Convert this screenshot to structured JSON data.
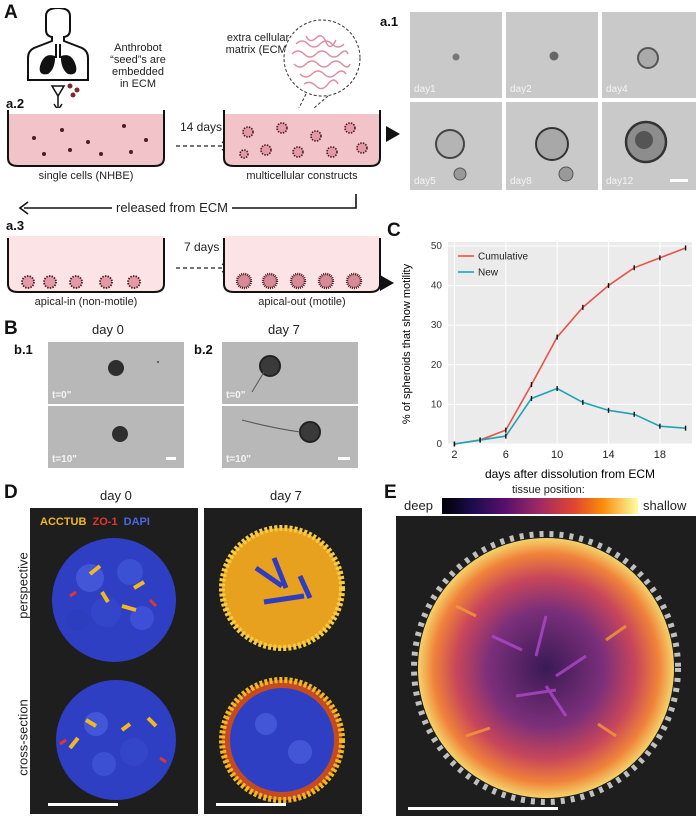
{
  "panels": {
    "A": "A",
    "a1": "a.1",
    "a2": "a.2",
    "a3": "a.3",
    "B": "B",
    "b1": "b.1",
    "b2": "b.2",
    "C": "C",
    "D": "D",
    "E": "E"
  },
  "panelA": {
    "anthrobot_text": [
      "Anthrobot",
      "“seed”s are",
      "embedded",
      "in ECM"
    ],
    "ecm_text": [
      "extra cellular",
      "matrix (ECM)"
    ],
    "arrow_14": "14 days",
    "single_cells": "single cells (NHBE)",
    "multicellular": "multicellular constructs",
    "released": "released from ECM",
    "arrow_7": "7 days",
    "apical_in": "apical-in (non-motile)",
    "apical_out": "apical-out (motile)",
    "timeline_days": [
      "day1",
      "day2",
      "day4",
      "day5",
      "day8",
      "day12"
    ]
  },
  "panelB": {
    "day0": "day 0",
    "day7": "day 7",
    "t0": "t=0\"",
    "t10": "t=10\""
  },
  "chart_data": {
    "type": "line",
    "xlabel": "days after dissolution from ECM",
    "ylabel": "% of spheroids that show motility",
    "xlim": [
      1.5,
      20.5
    ],
    "ylim": [
      0,
      51
    ],
    "xticks": [
      2,
      6,
      10,
      14,
      18
    ],
    "yticks": [
      0,
      10,
      20,
      30,
      40,
      50
    ],
    "grid": true,
    "legend_position": "top-left",
    "series": [
      {
        "name": "Cumulative",
        "color": "#e8524b",
        "x": [
          2,
          4,
          6,
          8,
          10,
          12,
          14,
          16,
          18,
          20
        ],
        "y": [
          0,
          1,
          3.5,
          15,
          27,
          34.5,
          40,
          44.5,
          47,
          49.5
        ]
      },
      {
        "name": "New",
        "color": "#1fa4b5",
        "x": [
          2,
          4,
          6,
          8,
          10,
          12,
          14,
          16,
          18,
          20
        ],
        "y": [
          0,
          1,
          2,
          11.5,
          14,
          10.5,
          8.5,
          7.5,
          4.5,
          4
        ]
      }
    ]
  },
  "panelD": {
    "day0": "day 0",
    "day7": "day 7",
    "legend": {
      "acctub": "ACCTUB",
      "zo1": "ZO-1",
      "dapi": "DAPI"
    },
    "acctub_color": "#f2b824",
    "zo1_color": "#e0372c",
    "dapi_color": "#3b52d6",
    "perspective": "perspective",
    "cross_section": "cross-section"
  },
  "panelE": {
    "title": "tissue position:",
    "deep": "deep",
    "shallow": "shallow"
  }
}
